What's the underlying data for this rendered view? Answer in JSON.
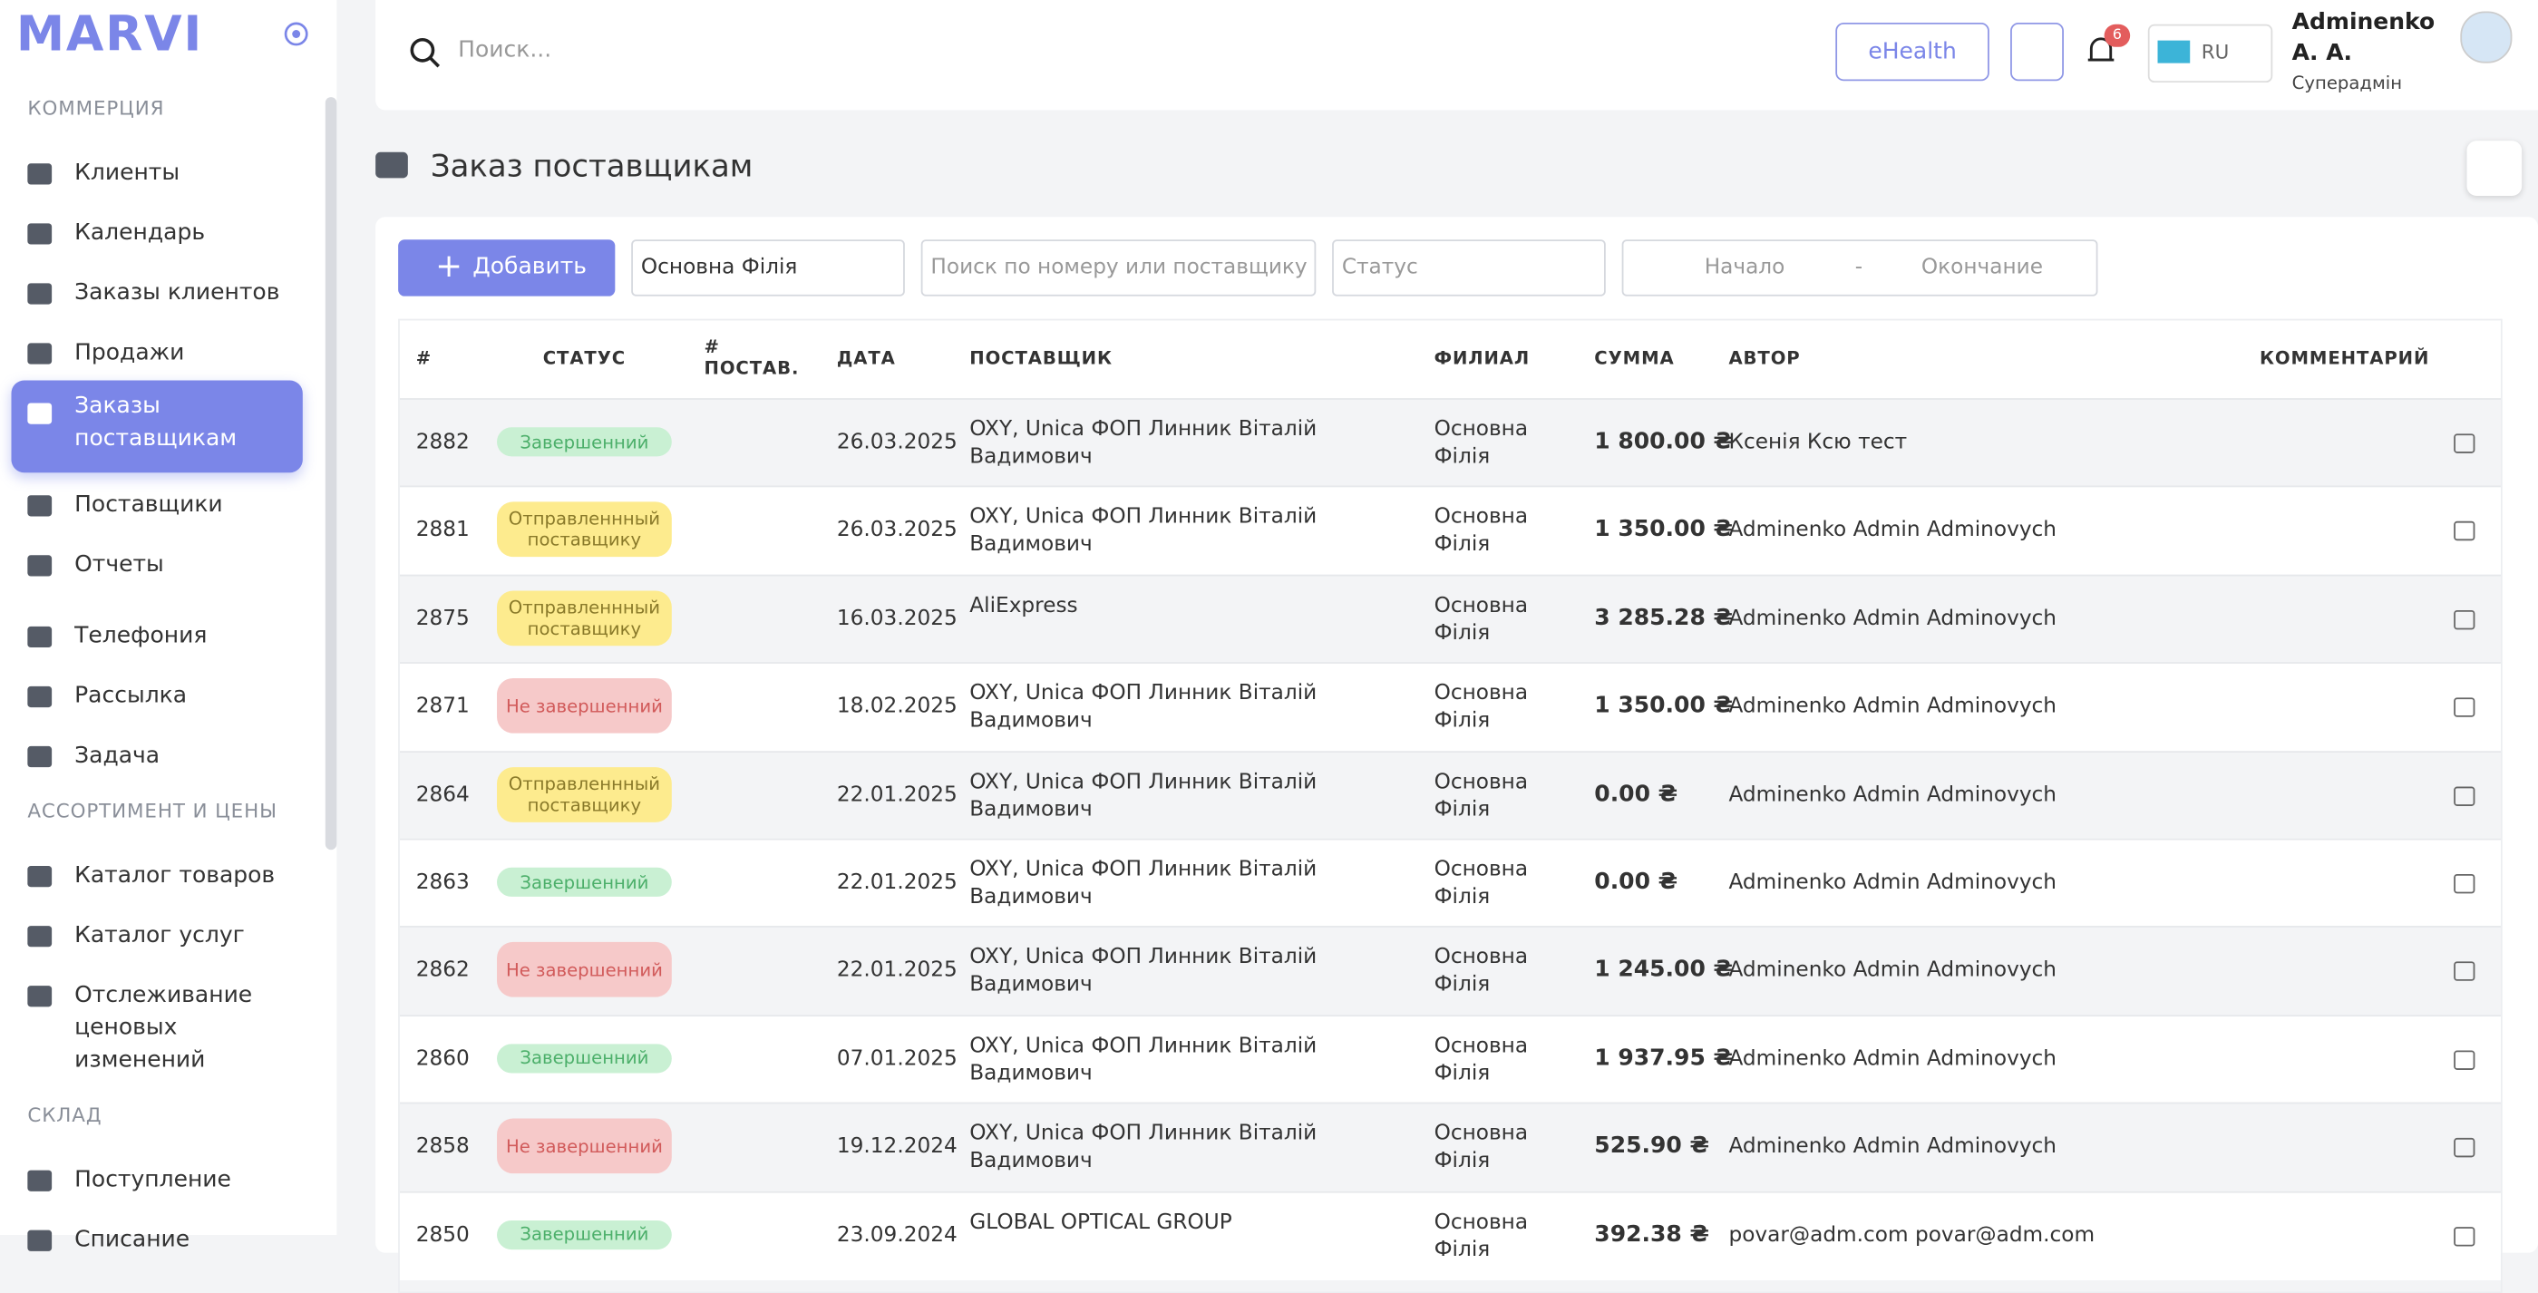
{
  "sidebar": {
    "logo": "MARVI",
    "sections": [
      {
        "title": "КОММЕРЦИЯ",
        "items": [
          "Клиенты",
          "Календарь",
          "Заказы клиентов",
          "Продажи",
          "Заказы поставщикам",
          "Поставщики",
          "Отчеты",
          "Телефония",
          "Рассылка",
          "Задача"
        ]
      },
      {
        "title": "АССОРТИМЕНТ И ЦЕНЫ",
        "items": [
          "Каталог товаров",
          "Каталог услуг",
          "Отслеживание ценовых изменений"
        ]
      },
      {
        "title": "СКЛАД",
        "items": [
          "Поступление",
          "Списание"
        ]
      }
    ]
  },
  "header": {
    "search_placeholder": "Поиск...",
    "ehealth": "eHealth",
    "notifications": "6",
    "language": "RU",
    "user_name": "Adminenko А. А.",
    "user_role": "Суперадмін"
  },
  "page": {
    "title": "Заказ поставщикам"
  },
  "toolbar": {
    "add": "Добавить",
    "branch": "Основна Філія",
    "search_placeholder": "Поиск по номеру или поставщику",
    "status_placeholder": "Статус",
    "date_start": "Начало",
    "date_separator": "-",
    "date_end": "Окончание"
  },
  "table": {
    "columns": [
      "#",
      "СТАТУС",
      "# ПОСТАВ.",
      "ДАТА",
      "ПОСТАВЩИК",
      "ФИЛИАЛ",
      "СУММА",
      "АВТОР",
      "КОММЕНТАРИЙ"
    ],
    "rows": [
      {
        "id": "2882",
        "status": "Завершенний",
        "status_color": "green",
        "date": "26.03.2025",
        "supplier": "OXY, Unica ФОП Линник Віталій Вадимович",
        "branch": "Основна Філія",
        "sum": "1 800.00 ₴",
        "author": "Ксенія Ксю тест"
      },
      {
        "id": "2881",
        "status": "Отправленнный поставщику",
        "status_color": "yellow",
        "date": "26.03.2025",
        "supplier": "OXY, Unica ФОП Линник Віталій Вадимович",
        "branch": "Основна Філія",
        "sum": "1 350.00 ₴",
        "author": "Adminenko Admin Adminovych"
      },
      {
        "id": "2875",
        "status": "Отправленнный поставщику",
        "status_color": "yellow",
        "date": "16.03.2025",
        "supplier": "AliExpress",
        "branch": "Основна Філія",
        "sum": "3 285.28 ₴",
        "author": "Adminenko Admin Adminovych"
      },
      {
        "id": "2871",
        "status": "Не завершенний",
        "status_color": "red",
        "date": "18.02.2025",
        "supplier": "OXY, Unica ФОП Линник Віталій Вадимович",
        "branch": "Основна Філія",
        "sum": "1 350.00 ₴",
        "author": "Adminenko Admin Adminovych"
      },
      {
        "id": "2864",
        "status": "Отправленнный поставщику",
        "status_color": "yellow",
        "date": "22.01.2025",
        "supplier": "OXY, Unica ФОП Линник Віталій Вадимович",
        "branch": "Основна Філія",
        "sum": "0.00 ₴",
        "author": "Adminenko Admin Adminovych"
      },
      {
        "id": "2863",
        "status": "Завершенний",
        "status_color": "green",
        "date": "22.01.2025",
        "supplier": "OXY, Unica ФОП Линник Віталій Вадимович",
        "branch": "Основна Філія",
        "sum": "0.00 ₴",
        "author": "Adminenko Admin Adminovych"
      },
      {
        "id": "2862",
        "status": "Не завершенний",
        "status_color": "red",
        "date": "22.01.2025",
        "supplier": "OXY, Unica ФОП Линник Віталій Вадимович",
        "branch": "Основна Філія",
        "sum": "1 245.00 ₴",
        "author": "Adminenko Admin Adminovych"
      },
      {
        "id": "2860",
        "status": "Завершенний",
        "status_color": "green",
        "date": "07.01.2025",
        "supplier": "OXY, Unica ФОП Линник Віталій Вадимович",
        "branch": "Основна Філія",
        "sum": "1 937.95 ₴",
        "author": "Adminenko Admin Adminovych"
      },
      {
        "id": "2858",
        "status": "Не завершенний",
        "status_color": "red",
        "date": "19.12.2024",
        "supplier": "OXY, Unica ФОП Линник Віталій Вадимович",
        "branch": "Основна Філія",
        "sum": "525.90 ₴",
        "author": "Adminenko Admin Adminovych"
      },
      {
        "id": "2850",
        "status": "Завершенний",
        "status_color": "green",
        "date": "23.09.2024",
        "supplier": "GLOBAL OPTICAL GROUP",
        "branch": "Основна Філія",
        "sum": "392.38 ₴",
        "author": "povar@adm.com povar@adm.com"
      }
    ]
  }
}
